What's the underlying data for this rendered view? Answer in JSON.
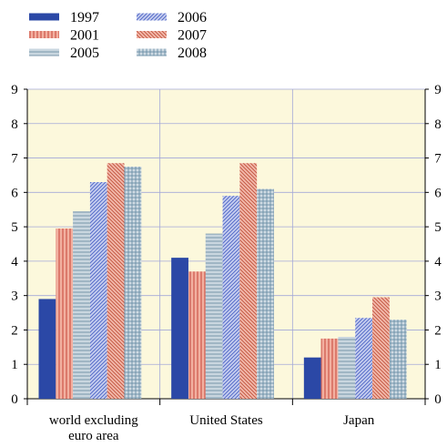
{
  "chart_data": {
    "type": "bar",
    "categories": [
      [
        "world excluding",
        "euro area"
      ],
      [
        "United States"
      ],
      [
        "Japan"
      ]
    ],
    "series": [
      {
        "name": "1997",
        "values": [
          2.9,
          4.1,
          1.2
        ],
        "color": "#2b48a6",
        "pattern": "solid"
      },
      {
        "name": "2001",
        "values": [
          4.95,
          3.7,
          1.75
        ],
        "color": "#f2b0a0",
        "pattern": "vertical",
        "stroke": "#c0392b"
      },
      {
        "name": "2005",
        "values": [
          5.45,
          4.8,
          1.8
        ],
        "color": "#c9d6df",
        "pattern": "horizontal",
        "stroke": "#6f8fa3"
      },
      {
        "name": "2006",
        "values": [
          6.3,
          5.9,
          2.35
        ],
        "color": "#c5cdef",
        "pattern": "diagonal-fwd",
        "stroke": "#4a62c4"
      },
      {
        "name": "2007",
        "values": [
          6.85,
          6.85,
          2.95
        ],
        "color": "#f2b8aa",
        "pattern": "diagonal-back",
        "stroke": "#c0503a"
      },
      {
        "name": "2008",
        "values": [
          6.75,
          6.1,
          2.3
        ],
        "color": "#cfdbe3",
        "pattern": "grid",
        "stroke": "#6a8ea6"
      }
    ],
    "ylim": [
      0,
      9
    ],
    "yticks": [
      0,
      1,
      2,
      3,
      4,
      5,
      6,
      7,
      8,
      9
    ],
    "grid": true,
    "legend": "top-left",
    "plot_background": "#fcf8dc",
    "grid_color": "#a3a8d8"
  }
}
